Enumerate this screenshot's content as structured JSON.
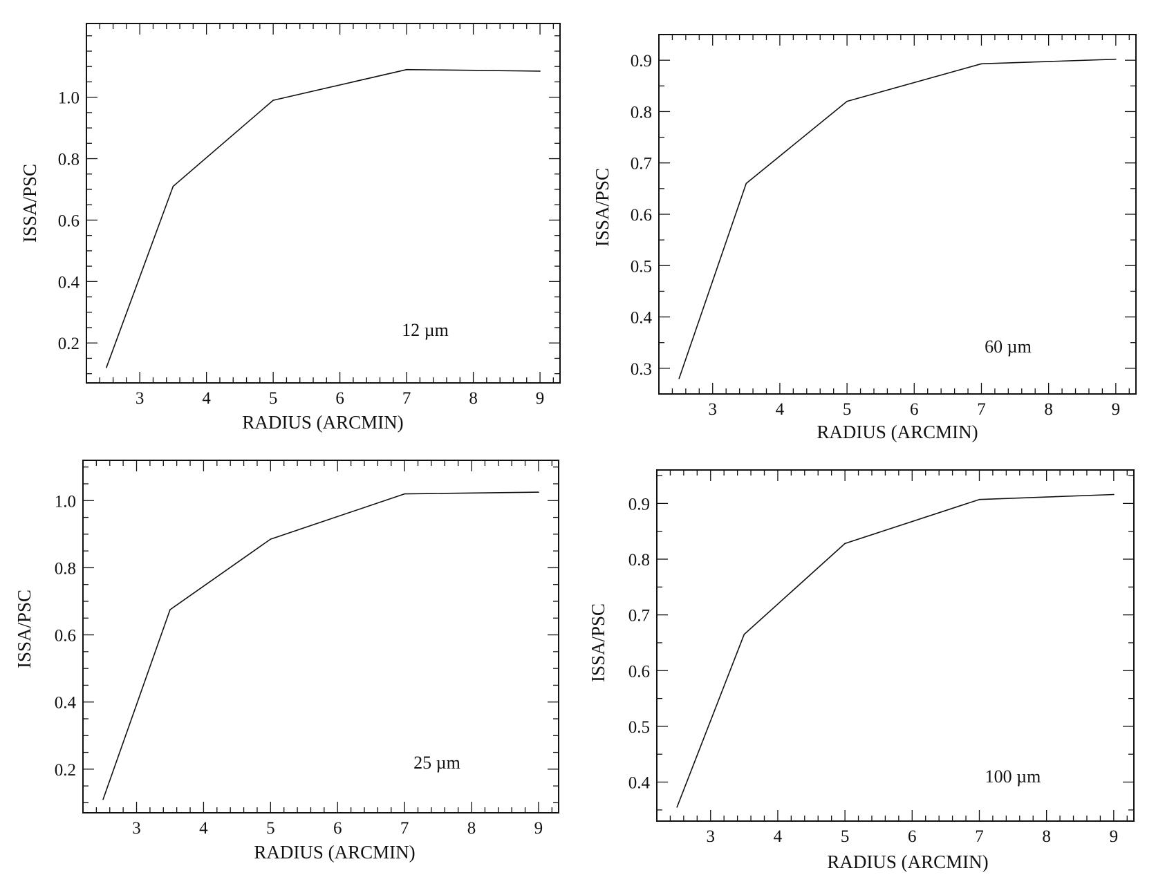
{
  "chart_data": [
    {
      "type": "line",
      "annotation": "12 µm",
      "xlabel": "RADIUS (ARCMIN)",
      "ylabel": "ISSA/PSC",
      "xlim": [
        2.2,
        9.3
      ],
      "ylim": [
        0.07,
        1.24
      ],
      "xticks": [
        3,
        4,
        5,
        6,
        7,
        8,
        9
      ],
      "xtick_labels": [
        "3",
        "4",
        "5",
        "6",
        "7",
        "8",
        "9"
      ],
      "yticks": [
        0.2,
        0.4,
        0.6,
        0.8,
        1.0
      ],
      "ytick_labels": [
        "0.2",
        "0.4",
        "0.6",
        "0.8",
        "1.0"
      ],
      "grid": false,
      "series": [
        {
          "x": [
            2.5,
            3.5,
            5.0,
            7.0,
            9.0
          ],
          "y": [
            0.12,
            0.71,
            0.99,
            1.09,
            1.085
          ]
        }
      ]
    },
    {
      "type": "line",
      "annotation": "60 µm",
      "xlabel": "RADIUS (ARCMIN)",
      "ylabel": "ISSA/PSC",
      "xlim": [
        2.2,
        9.3
      ],
      "ylim": [
        0.25,
        0.95
      ],
      "xticks": [
        3,
        4,
        5,
        6,
        7,
        8,
        9
      ],
      "xtick_labels": [
        "3",
        "4",
        "5",
        "6",
        "7",
        "8",
        "9"
      ],
      "yticks": [
        0.3,
        0.4,
        0.5,
        0.6,
        0.7,
        0.8,
        0.9
      ],
      "ytick_labels": [
        "0.3",
        "0.4",
        "0.5",
        "0.6",
        "0.7",
        "0.8",
        "0.9"
      ],
      "grid": false,
      "series": [
        {
          "x": [
            2.5,
            3.5,
            5.0,
            7.0,
            9.0
          ],
          "y": [
            0.28,
            0.66,
            0.82,
            0.893,
            0.902
          ]
        }
      ]
    },
    {
      "type": "line",
      "annotation": "25 µm",
      "xlabel": "RADIUS (ARCMIN)",
      "ylabel": "ISSA/PSC",
      "xlim": [
        2.2,
        9.3
      ],
      "ylim": [
        0.07,
        1.12
      ],
      "xticks": [
        3,
        4,
        5,
        6,
        7,
        8,
        9
      ],
      "xtick_labels": [
        "3",
        "4",
        "5",
        "6",
        "7",
        "8",
        "9"
      ],
      "yticks": [
        0.2,
        0.4,
        0.6,
        0.8,
        1.0
      ],
      "ytick_labels": [
        "0.2",
        "0.4",
        "0.6",
        "0.8",
        "1.0"
      ],
      "grid": false,
      "series": [
        {
          "x": [
            2.5,
            3.5,
            5.0,
            7.0,
            9.0
          ],
          "y": [
            0.11,
            0.675,
            0.885,
            1.02,
            1.025
          ]
        }
      ]
    },
    {
      "type": "line",
      "annotation": "100 µm",
      "xlabel": "RADIUS (ARCMIN)",
      "ylabel": "ISSA/PSC",
      "xlim": [
        2.2,
        9.3
      ],
      "ylim": [
        0.33,
        0.96
      ],
      "xticks": [
        3,
        4,
        5,
        6,
        7,
        8,
        9
      ],
      "xtick_labels": [
        "3",
        "4",
        "5",
        "6",
        "7",
        "8",
        "9"
      ],
      "yticks": [
        0.4,
        0.5,
        0.6,
        0.7,
        0.8,
        0.9
      ],
      "ytick_labels": [
        "0.4",
        "0.5",
        "0.6",
        "0.7",
        "0.8",
        "0.9"
      ],
      "grid": false,
      "series": [
        {
          "x": [
            2.5,
            3.5,
            5.0,
            7.0,
            9.0
          ],
          "y": [
            0.355,
            0.665,
            0.828,
            0.907,
            0.916
          ]
        }
      ]
    }
  ]
}
